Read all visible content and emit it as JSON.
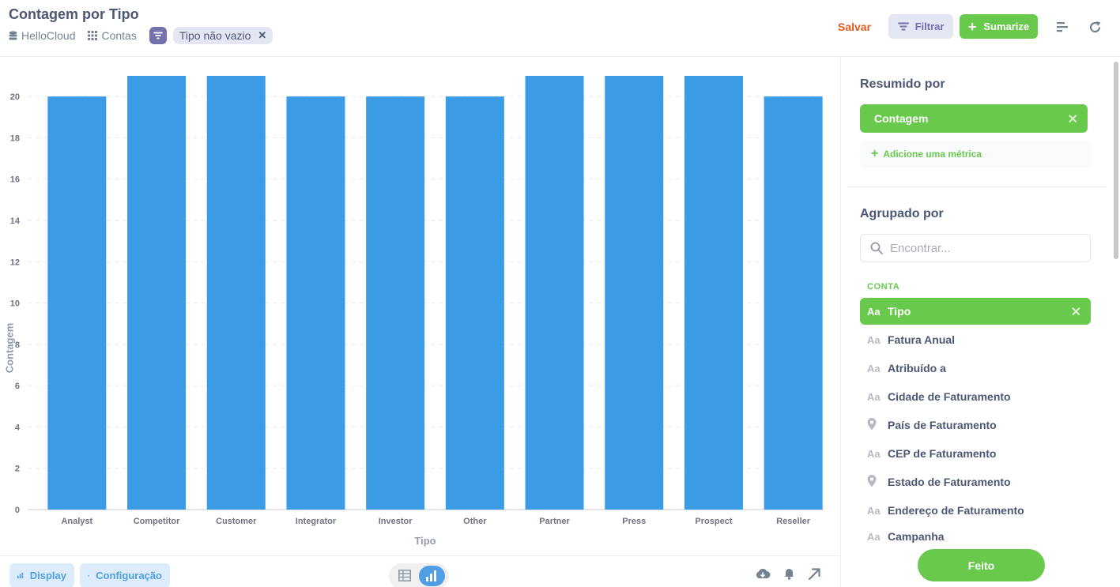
{
  "header": {
    "title": "Contagem por Tipo",
    "database": "HelloCloud",
    "table": "Contas",
    "filter_pill": "Tipo não vazio",
    "save_label": "Salvar",
    "filter_label": "Filtrar",
    "summarize_label": "Sumarize"
  },
  "chart_data": {
    "type": "bar",
    "categories": [
      "Analyst",
      "Competitor",
      "Customer",
      "Integrator",
      "Investor",
      "Other",
      "Partner",
      "Press",
      "Prospect",
      "Reseller"
    ],
    "values": [
      20,
      21,
      21,
      20,
      20,
      20,
      21,
      21,
      21,
      20
    ],
    "xlabel": "Tipo",
    "ylabel": "Contagem",
    "ylim": [
      0,
      21
    ],
    "yticks": [
      0,
      2,
      4,
      6,
      8,
      10,
      12,
      14,
      16,
      18,
      20
    ],
    "grid": true,
    "color": "#3b9be5"
  },
  "footer": {
    "display_label": "Display",
    "settings_label": "Configuração"
  },
  "sidebar": {
    "summarized_title": "Resumido por",
    "metric": "Contagem",
    "add_metric": "Adicione uma métrica",
    "grouped_title": "Agrupado por",
    "search_placeholder": "Encontrar...",
    "section": "CONTA",
    "fields": [
      {
        "label": "Tipo",
        "icon": "text-icon",
        "selected": true
      },
      {
        "label": "Fatura Anual",
        "icon": "text-icon"
      },
      {
        "label": "Atribuído a",
        "icon": "text-icon"
      },
      {
        "label": "Cidade de Faturamento",
        "icon": "text-icon"
      },
      {
        "label": "País de Faturamento",
        "icon": "location-pin-icon"
      },
      {
        "label": "CEP de Faturamento",
        "icon": "text-icon"
      },
      {
        "label": "Estado de Faturamento",
        "icon": "location-pin-icon"
      },
      {
        "label": "Endereço de Faturamento",
        "icon": "text-icon"
      },
      {
        "label": "Campanha",
        "icon": "text-icon"
      }
    ],
    "done_label": "Feito"
  },
  "colors": {
    "accent_green": "#69c94c",
    "brand_blue": "#509ee3",
    "filter_purple": "#7172ad",
    "save_orange": "#e45b21"
  }
}
